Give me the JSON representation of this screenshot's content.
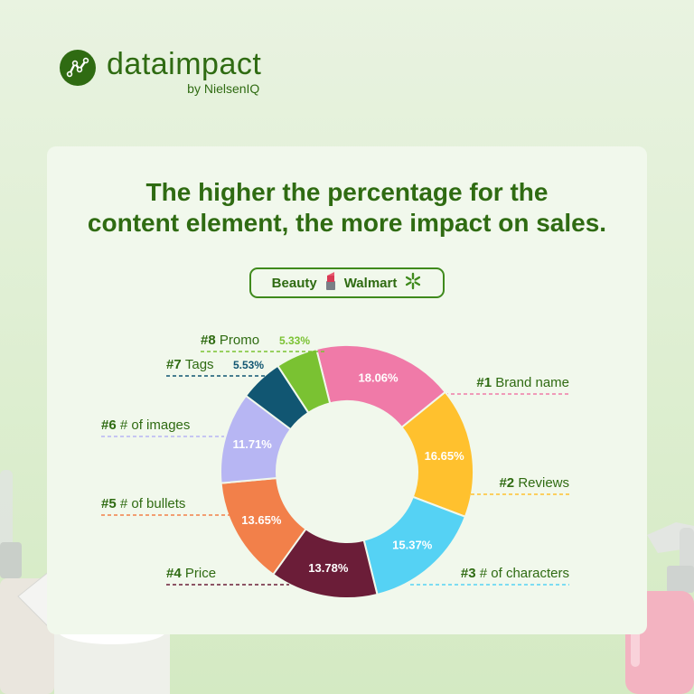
{
  "brand": {
    "name": "dataimpact",
    "sub": "by NielsenIQ"
  },
  "headline": {
    "line1": "The higher the percentage for the",
    "line2": "content element, the more impact on sales."
  },
  "filter": {
    "category": "Beauty",
    "retailer": "Walmart",
    "category_icon": "lipstick-icon",
    "retailer_icon": "walmart-spark-icon"
  },
  "colors": {
    "brand_green": "#2f6b12",
    "background": "#e9f3e1"
  },
  "chart_data": {
    "type": "pie",
    "variant": "donut",
    "slices": [
      {
        "rank": "#1",
        "name": "Brand name",
        "value": 18.06,
        "color": "#f07aa8"
      },
      {
        "rank": "#2",
        "name": "Reviews",
        "value": 16.65,
        "color": "#ffc12e"
      },
      {
        "rank": "#3",
        "name": "# of characters",
        "value": 15.37,
        "color": "#55d2f4"
      },
      {
        "rank": "#4",
        "name": "Price",
        "value": 13.78,
        "color": "#6b1d38"
      },
      {
        "rank": "#5",
        "name": "# of bullets",
        "value": 13.65,
        "color": "#f2804a"
      },
      {
        "rank": "#6",
        "name": "# of images",
        "value": 11.71,
        "color": "#b7b6f3"
      },
      {
        "rank": "#7",
        "name": "Tags",
        "value": 5.53,
        "color": "#115672"
      },
      {
        "rank": "#8",
        "name": "Promo",
        "value": 5.33,
        "color": "#7ac232"
      }
    ]
  }
}
